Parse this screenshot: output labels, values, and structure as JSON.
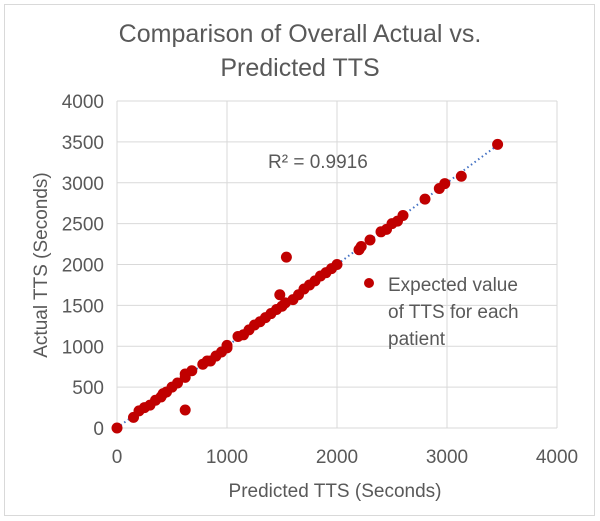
{
  "chart_data": {
    "type": "scatter",
    "title_lines": [
      "Comparison of Overall Actual vs.",
      "Predicted TTS"
    ],
    "xlabel": "Predicted TTS (Seconds)",
    "ylabel": "Actual TTS (Seconds)",
    "xlim": [
      0,
      4000
    ],
    "ylim": [
      0,
      4000
    ],
    "xticks": [
      "0",
      "1000",
      "2000",
      "3000",
      "4000"
    ],
    "yticks": [
      "0",
      "500",
      "1000",
      "1500",
      "2000",
      "2500",
      "3000",
      "3500",
      "4000"
    ],
    "grid": true,
    "legend_placement": "right",
    "legend_lines": [
      "Expected value",
      "of TTS for each",
      "patient"
    ],
    "annotation": "R² = 0.9916",
    "trendline": {
      "type": "linear",
      "x": [
        0,
        3500
      ],
      "y": [
        0,
        3500
      ],
      "color": "#4472C4",
      "style": "dotted"
    },
    "series": [
      {
        "name": "Expected value of TTS for each patient",
        "color": "#C00000",
        "points": [
          [
            0,
            0
          ],
          [
            150,
            130
          ],
          [
            200,
            210
          ],
          [
            250,
            250
          ],
          [
            300,
            280
          ],
          [
            350,
            340
          ],
          [
            400,
            380
          ],
          [
            420,
            420
          ],
          [
            450,
            440
          ],
          [
            500,
            500
          ],
          [
            550,
            550
          ],
          [
            620,
            620
          ],
          [
            620,
            220
          ],
          [
            620,
            660
          ],
          [
            680,
            700
          ],
          [
            780,
            780
          ],
          [
            820,
            820
          ],
          [
            850,
            820
          ],
          [
            900,
            880
          ],
          [
            950,
            930
          ],
          [
            1000,
            980
          ],
          [
            1000,
            1010
          ],
          [
            1100,
            1120
          ],
          [
            1150,
            1140
          ],
          [
            1200,
            1200
          ],
          [
            1250,
            1260
          ],
          [
            1300,
            1300
          ],
          [
            1350,
            1350
          ],
          [
            1400,
            1400
          ],
          [
            1450,
            1450
          ],
          [
            1500,
            1490
          ],
          [
            1530,
            1530
          ],
          [
            1480,
            1630
          ],
          [
            1540,
            2090
          ],
          [
            1600,
            1570
          ],
          [
            1650,
            1630
          ],
          [
            1700,
            1700
          ],
          [
            1750,
            1750
          ],
          [
            1800,
            1800
          ],
          [
            1850,
            1860
          ],
          [
            1900,
            1900
          ],
          [
            1950,
            1950
          ],
          [
            2000,
            2000
          ],
          [
            2200,
            2180
          ],
          [
            2220,
            2220
          ],
          [
            2300,
            2300
          ],
          [
            2400,
            2400
          ],
          [
            2450,
            2430
          ],
          [
            2500,
            2500
          ],
          [
            2550,
            2530
          ],
          [
            2600,
            2600
          ],
          [
            2800,
            2800
          ],
          [
            2930,
            2930
          ],
          [
            2980,
            2990
          ],
          [
            3130,
            3080
          ],
          [
            3460,
            3470
          ]
        ]
      }
    ]
  }
}
